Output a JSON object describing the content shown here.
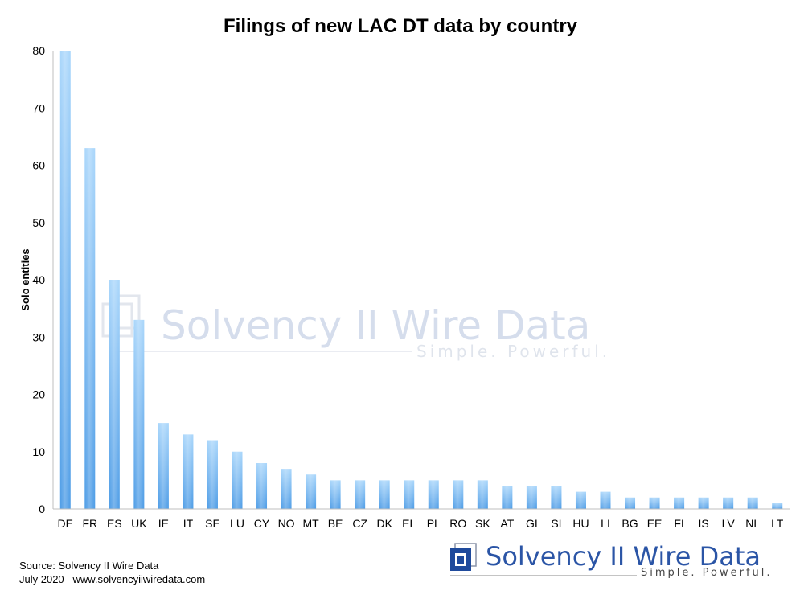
{
  "chart_data": {
    "type": "bar",
    "title": "Filings of new LAC DT data by country",
    "xlabel": "",
    "ylabel": "Solo entities",
    "ylim": [
      0,
      80
    ],
    "yticks": [
      0,
      10,
      20,
      30,
      40,
      50,
      60,
      70,
      80
    ],
    "categories": [
      "DE",
      "FR",
      "ES",
      "UK",
      "IE",
      "IT",
      "SE",
      "LU",
      "CY",
      "NO",
      "MT",
      "BE",
      "CZ",
      "DK",
      "EL",
      "PL",
      "RO",
      "SK",
      "AT",
      "GI",
      "SI",
      "HU",
      "LI",
      "BG",
      "EE",
      "FI",
      "IS",
      "LV",
      "NL",
      "LT"
    ],
    "values": [
      80,
      63,
      40,
      33,
      15,
      13,
      12,
      10,
      8,
      7,
      6,
      5,
      5,
      5,
      5,
      5,
      5,
      5,
      4,
      4,
      4,
      3,
      3,
      2,
      2,
      2,
      2,
      2,
      2,
      1
    ],
    "grid": false,
    "legend": "none"
  },
  "footer": {
    "source": "Source: Solvency II Wire Data",
    "date_site": "July 2020   www.solvencyiiwiredata.com"
  },
  "watermark": {
    "name": "Solvency II Wire Data",
    "tagline": "Simple. Powerful."
  },
  "logo": {
    "name": "Solvency II Wire Data",
    "tagline": "Simple. Powerful."
  },
  "colors": {
    "bar_top": "#a9d6fb",
    "bar_bottom": "#4d9ce6",
    "logo_blue": "#2b55a6"
  }
}
